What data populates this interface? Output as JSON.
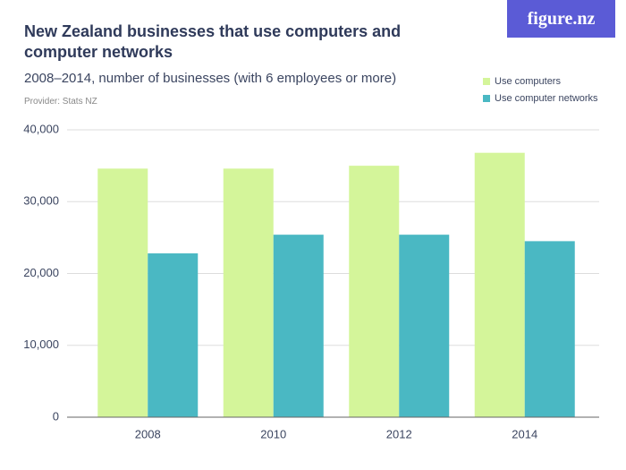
{
  "logo": "figure.nz",
  "chart_data": {
    "type": "bar",
    "title": "New Zealand businesses that use computers and computer networks",
    "subtitle": "2008–2014, number of businesses (with 6 employees or more)",
    "provider": "Provider: Stats NZ",
    "categories": [
      "2008",
      "2010",
      "2012",
      "2014"
    ],
    "series": [
      {
        "name": "Use computers",
        "color": "#d4f59a",
        "values": [
          34600,
          34600,
          35000,
          36800
        ]
      },
      {
        "name": "Use computer networks",
        "color": "#4ab8c3",
        "values": [
          22800,
          25400,
          25400,
          24500
        ]
      }
    ],
    "ylim": [
      0,
      40000
    ],
    "yticks": [
      0,
      {
        "value": 10000,
        "label": "10,000"
      },
      {
        "value": 20000,
        "label": "20,000"
      },
      {
        "value": 30000,
        "label": "30,000"
      },
      {
        "value": 40000,
        "label": "40,000"
      }
    ],
    "grid": true
  }
}
